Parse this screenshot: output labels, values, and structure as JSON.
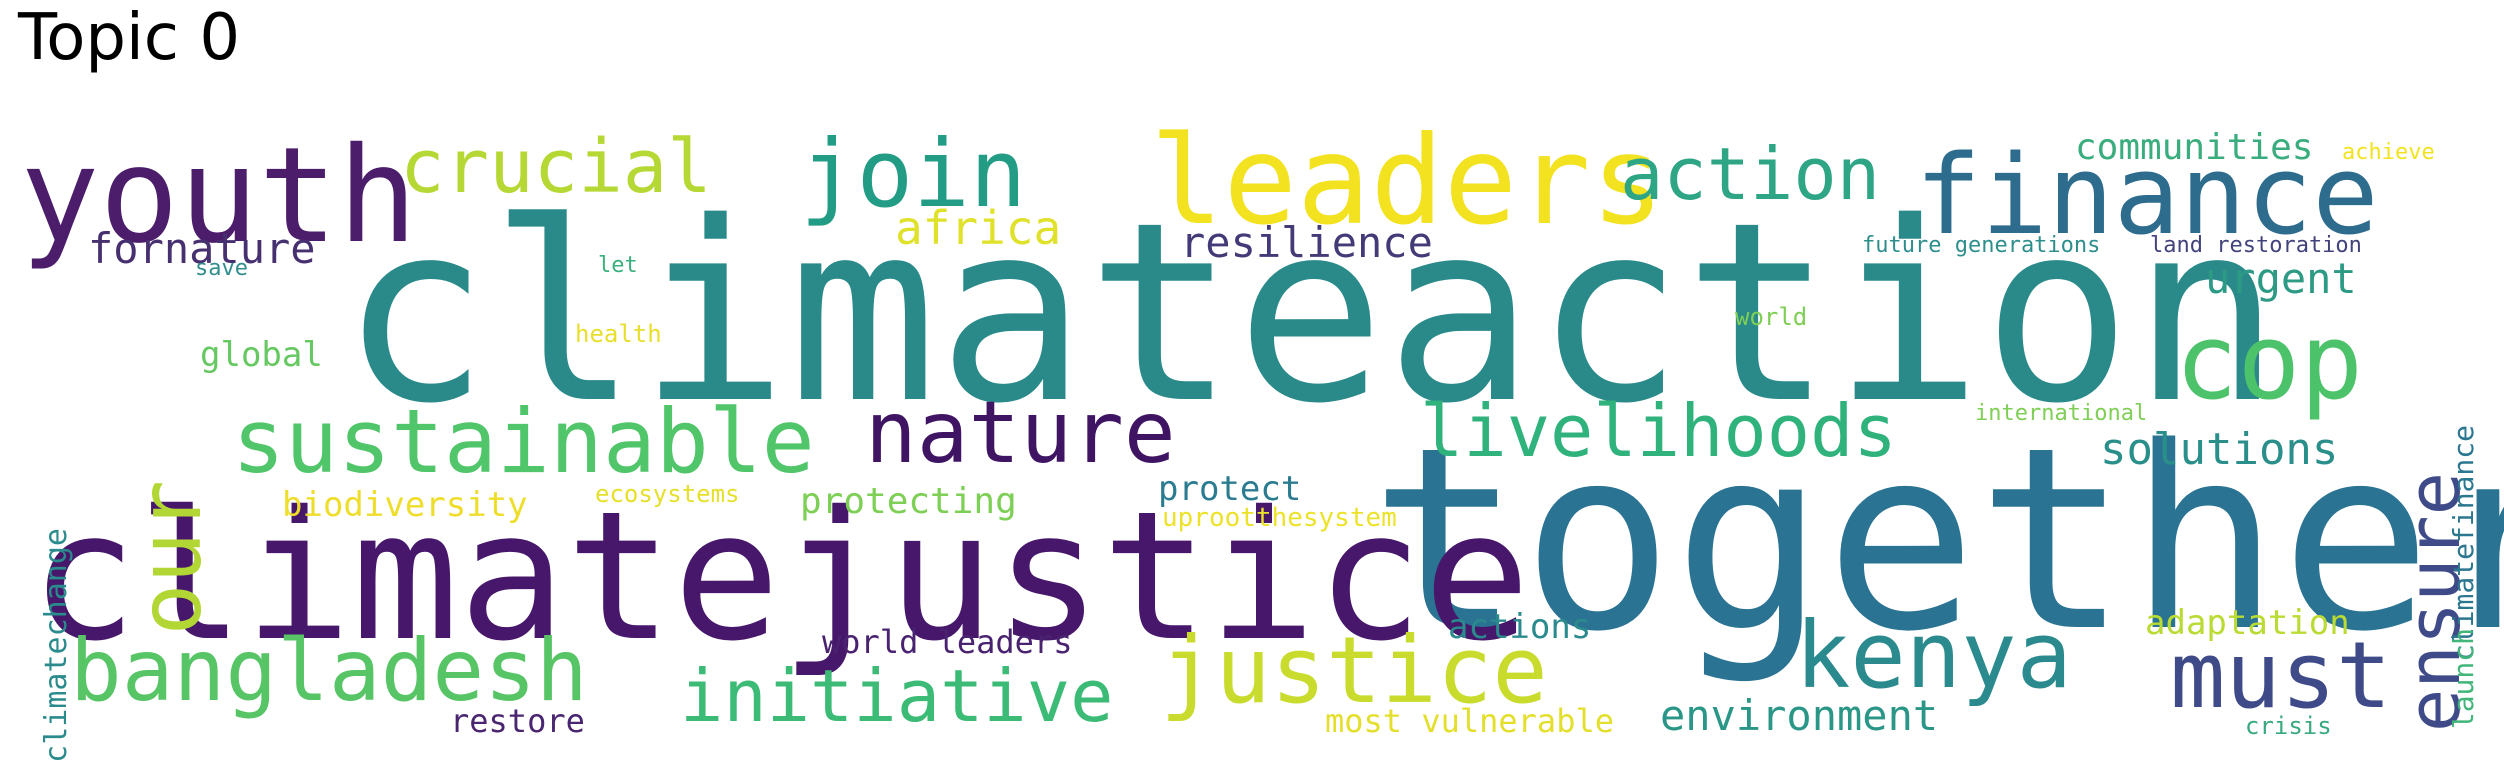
{
  "title": "Topic 0",
  "words": [
    {
      "text": "climateaction",
      "color": "#2a8a8a"
    },
    {
      "text": "together",
      "color": "#2a7392"
    },
    {
      "text": "climatejustice",
      "color": "#46176a"
    },
    {
      "text": "youth",
      "color": "#4b1d6b"
    },
    {
      "text": "leaders",
      "color": "#f2e21f"
    },
    {
      "text": "finance",
      "color": "#2e6c8e"
    },
    {
      "text": "crucial",
      "color": "#b5d834"
    },
    {
      "text": "join",
      "color": "#229c84"
    },
    {
      "text": "action",
      "color": "#2ea585"
    },
    {
      "text": "our",
      "color": "#b2d735"
    },
    {
      "text": "cop",
      "color": "#4cc26b"
    },
    {
      "text": "ensure",
      "color": "#3f4b89"
    },
    {
      "text": "sustainable",
      "color": "#51c56a"
    },
    {
      "text": "nature",
      "color": "#3e1463"
    },
    {
      "text": "livelihoods",
      "color": "#2fb27c"
    },
    {
      "text": "bangladesh",
      "color": "#57c566"
    },
    {
      "text": "initiative",
      "color": "#3bbb75"
    },
    {
      "text": "justice",
      "color": "#c9dc2e"
    },
    {
      "text": "kenya",
      "color": "#2b8a8d"
    },
    {
      "text": "must",
      "color": "#3f4b89"
    },
    {
      "text": "environment",
      "color": "#2a9687"
    },
    {
      "text": "fornature",
      "color": "#47306f"
    },
    {
      "text": "resilience",
      "color": "#433b78"
    },
    {
      "text": "africa",
      "color": "#e0e12a"
    },
    {
      "text": "communities",
      "color": "#3aad7e"
    },
    {
      "text": "urgent",
      "color": "#2d9a85"
    },
    {
      "text": "solutions",
      "color": "#2a8f8b"
    },
    {
      "text": "adaptation",
      "color": "#b9db33"
    },
    {
      "text": "actions",
      "color": "#2a8a8d"
    },
    {
      "text": "world leaders",
      "color": "#4a2370"
    },
    {
      "text": "protect",
      "color": "#2b7c90"
    },
    {
      "text": "protecting",
      "color": "#7dcf55"
    },
    {
      "text": "biodiversity",
      "color": "#eede2b"
    },
    {
      "text": "global",
      "color": "#66c861"
    },
    {
      "text": "climatechange",
      "color": "#2b8b8c"
    },
    {
      "text": "restore",
      "color": "#4a2570"
    },
    {
      "text": "most vulnerable",
      "color": "#e4df2c"
    },
    {
      "text": "uprootthesystem",
      "color": "#ede22a"
    },
    {
      "text": "ecosystems",
      "color": "#e6e02a"
    },
    {
      "text": "health",
      "color": "#e8df2d"
    },
    {
      "text": "let",
      "color": "#3ab07c"
    },
    {
      "text": "save",
      "color": "#328e8d"
    },
    {
      "text": "world",
      "color": "#7fcf55"
    },
    {
      "text": "international",
      "color": "#7fcf56"
    },
    {
      "text": "future generations",
      "color": "#2d8e8c"
    },
    {
      "text": "land restoration",
      "color": "#42437d"
    },
    {
      "text": "climatefinance",
      "color": "#2b7790"
    },
    {
      "text": "achieve",
      "color": "#f1e31f"
    },
    {
      "text": "launch",
      "color": "#41b57a"
    },
    {
      "text": "crisis",
      "color": "#39aa7f"
    }
  ]
}
